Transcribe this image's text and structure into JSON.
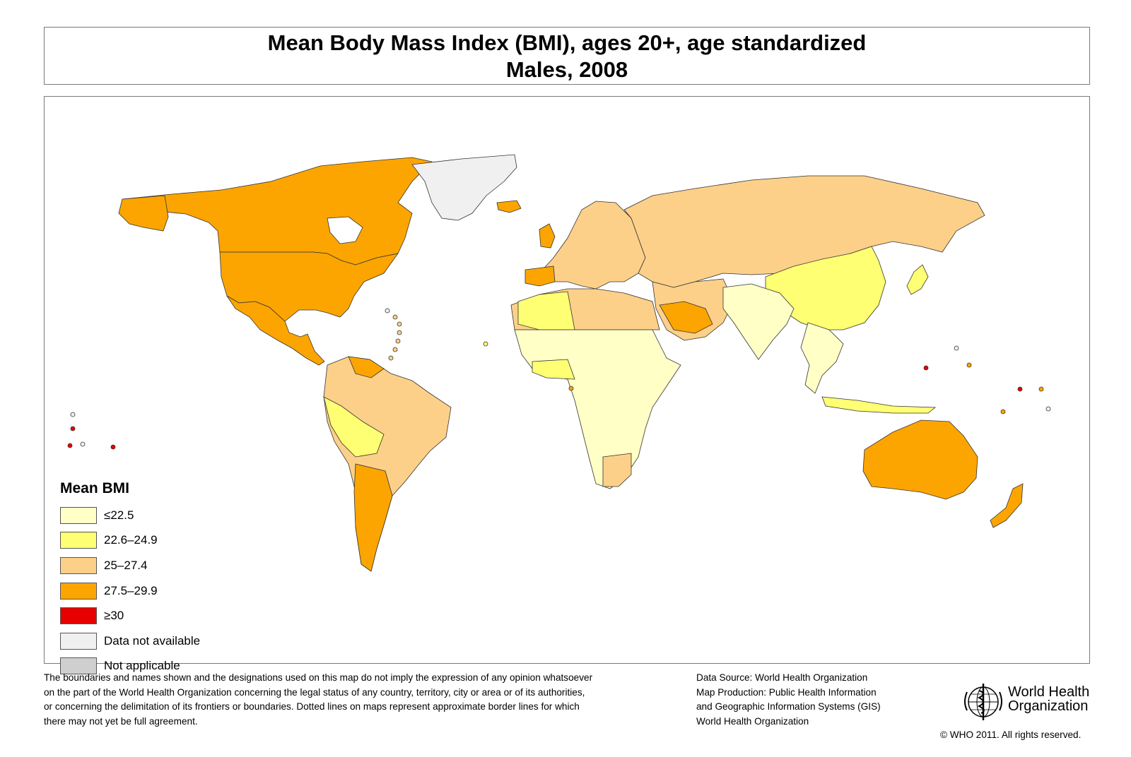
{
  "title": {
    "line1": "Mean Body Mass Index (BMI), ages 20+, age standardized",
    "line2": "Males, 2008"
  },
  "legend": {
    "title": "Mean BMI",
    "items": [
      {
        "label": "≤22.5",
        "color": "#ffffc6"
      },
      {
        "label": "22.6–24.9",
        "color": "#ffff73"
      },
      {
        "label": "25–27.4",
        "color": "#fdd089"
      },
      {
        "label": "27.5–29.9",
        "color": "#fca500"
      },
      {
        "label": "≥30",
        "color": "#e60000"
      },
      {
        "label": "Data not available",
        "color": "#f0f0f0"
      },
      {
        "label": "Not applicable",
        "color": "#cfcfcf"
      }
    ]
  },
  "disclaimer": [
    "The boundaries and names shown and the designations used on this map do not imply the expression of any opinion whatsoever",
    "on the part of the World Health Organization concerning the legal status of any country, territory, city or area or of its authorities,",
    "or concerning the delimitation of its frontiers or boundaries.  Dotted lines on maps represent approximate border lines for which",
    "there may not yet be full agreement."
  ],
  "source": [
    "Data Source: World Health Organization",
    "Map Production: Public Health Information",
    "and Geographic Information Systems (GIS)",
    "World Health Organization"
  ],
  "who": {
    "name_line1": "World Health",
    "name_line2": "Organization",
    "copyright": "© WHO 2011. All rights reserved."
  }
}
